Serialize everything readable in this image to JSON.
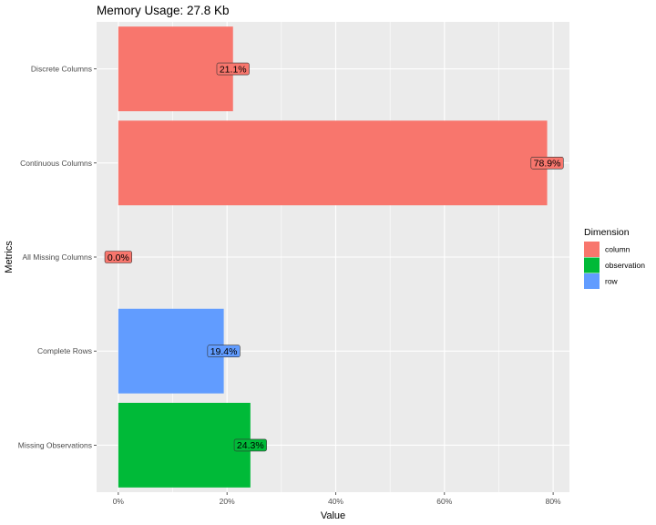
{
  "chart_data": {
    "type": "bar",
    "orientation": "horizontal",
    "title": "Memory Usage: 27.8 Kb",
    "xlabel": "Value",
    "ylabel": "Metrics",
    "xlim": [
      -0.04,
      0.83
    ],
    "x_ticks": [
      0,
      0.2,
      0.4,
      0.6,
      0.8
    ],
    "x_tick_labels": [
      "0%",
      "20%",
      "40%",
      "60%",
      "80%"
    ],
    "grid": true,
    "legend": {
      "title": "Dimension",
      "placement": "right",
      "entries": [
        {
          "name": "column",
          "color": "#F8766D"
        },
        {
          "name": "observation",
          "color": "#00BA38"
        },
        {
          "name": "row",
          "color": "#619CFF"
        }
      ]
    },
    "categories": [
      "Discrete Columns",
      "Continuous Columns",
      "All Missing Columns",
      "Complete Rows",
      "Missing Observations"
    ],
    "values": [
      0.211,
      0.789,
      0.0,
      0.194,
      0.243
    ],
    "labels": [
      "21.1%",
      "78.9%",
      "0.0%",
      "19.4%",
      "24.3%"
    ],
    "dimension": [
      "column",
      "column",
      "column",
      "row",
      "observation"
    ]
  }
}
